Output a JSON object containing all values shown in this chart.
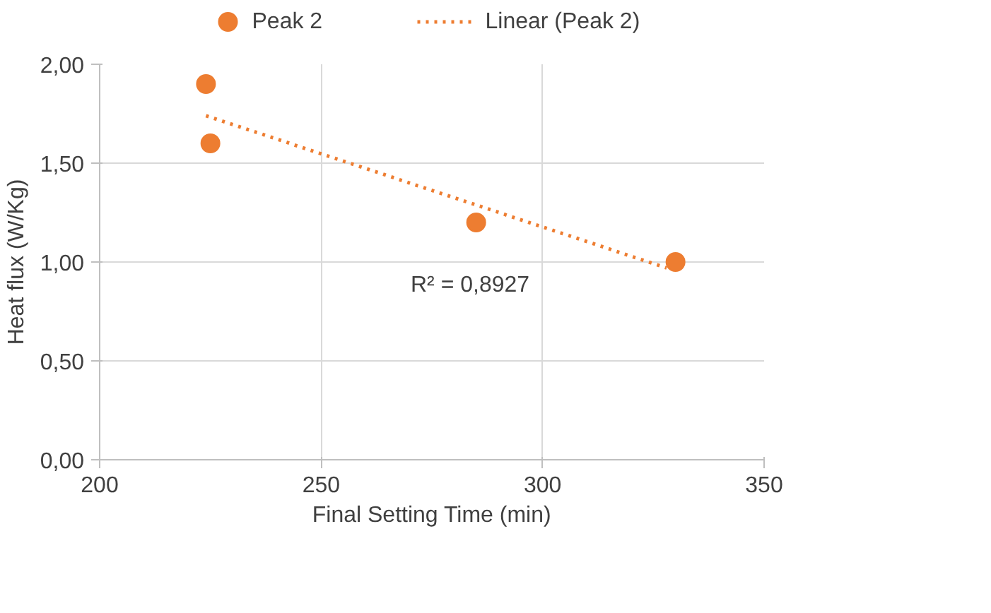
{
  "chart_data": {
    "type": "scatter",
    "xlabel": "Final Setting Time (min)",
    "ylabel": "Heat flux (W/Kg)",
    "xlim": [
      200,
      350
    ],
    "xticks": [
      200,
      250,
      300,
      350
    ],
    "ylim": [
      0,
      2
    ],
    "yticks": [
      {
        "value": 0,
        "label": "0,00"
      },
      {
        "value": 0.5,
        "label": "0,50"
      },
      {
        "value": 1,
        "label": "1,00"
      },
      {
        "value": 1.5,
        "label": "1,50"
      },
      {
        "value": 2,
        "label": "2,00"
      }
    ],
    "grid": true,
    "legend": "top",
    "marker": "circle",
    "series": [
      {
        "name": "Peak 2",
        "color": "#ed7d31",
        "x": [
          224,
          225,
          285,
          330
        ],
        "values": [
          1.9,
          1.6,
          1.2,
          1.0
        ]
      },
      {
        "name": "Linear (Peak 2)",
        "type": "line",
        "line_style": "dotted",
        "marker": "none",
        "color": "#ed7d31",
        "x": [
          224,
          328
        ],
        "values": [
          1.74,
          0.97
        ]
      }
    ],
    "annotations": [
      "R² = 0,8927"
    ]
  }
}
